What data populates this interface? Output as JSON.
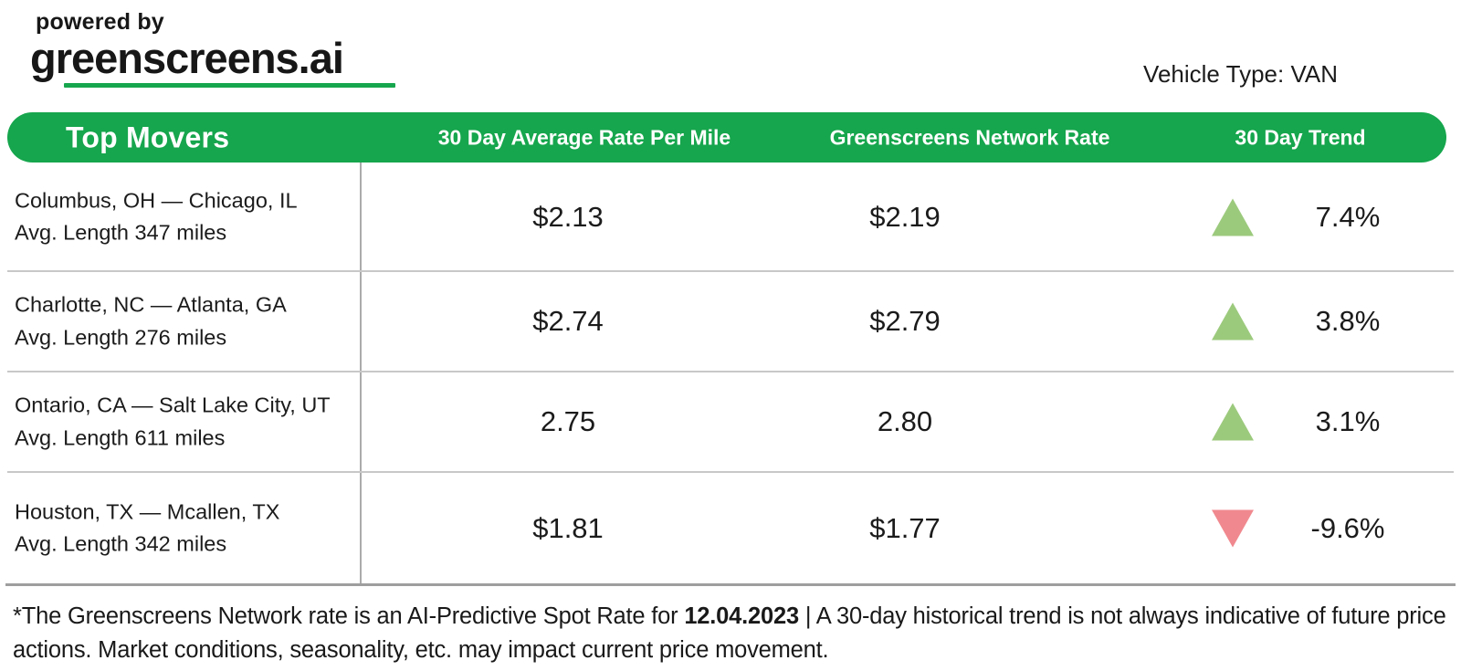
{
  "logo": {
    "powered_by": "powered by",
    "brand": "greenscreens.ai"
  },
  "vehicle_type_label": "Vehicle Type: VAN",
  "table": {
    "headers": {
      "top_movers": "Top Movers",
      "avg_rate": "30 Day Average Rate Per Mile",
      "network_rate": "Greenscreens Network Rate",
      "trend": "30 Day Trend"
    },
    "rows": [
      {
        "lane": "Columbus, OH — Chicago, IL",
        "avg_length": "Avg. Length 347 miles",
        "avg_rate": "$2.13",
        "network_rate": "$2.19",
        "trend_direction": "up",
        "trend_pct": "7.4%"
      },
      {
        "lane": "Charlotte, NC — Atlanta, GA",
        "avg_length": "Avg. Length 276 miles",
        "avg_rate": "$2.74",
        "network_rate": "$2.79",
        "trend_direction": "up",
        "trend_pct": "3.8%"
      },
      {
        "lane": "Ontario, CA — Salt Lake City, UT",
        "avg_length": "Avg. Length 611 miles",
        "avg_rate": "2.75",
        "network_rate": "2.80",
        "trend_direction": "up",
        "trend_pct": "3.1%"
      },
      {
        "lane": "Houston, TX — Mcallen, TX",
        "avg_length": "Avg. Length 342 miles",
        "avg_rate": "$1.81",
        "network_rate": "$1.77",
        "trend_direction": "down",
        "trend_pct": "-9.6%"
      }
    ]
  },
  "footer": {
    "pre_bold": "*The Greenscreens Network rate is an AI-Predictive Spot Rate for ",
    "bold": "12.04.2023",
    "post_bold": " | A 30-day historical trend is not always indicative of future price actions. Market conditions, seasonality, etc. may impact current price movement."
  },
  "colors": {
    "brand_green": "#16a64d",
    "trend_up": "#9cca7d",
    "trend_down": "#f0898f"
  }
}
